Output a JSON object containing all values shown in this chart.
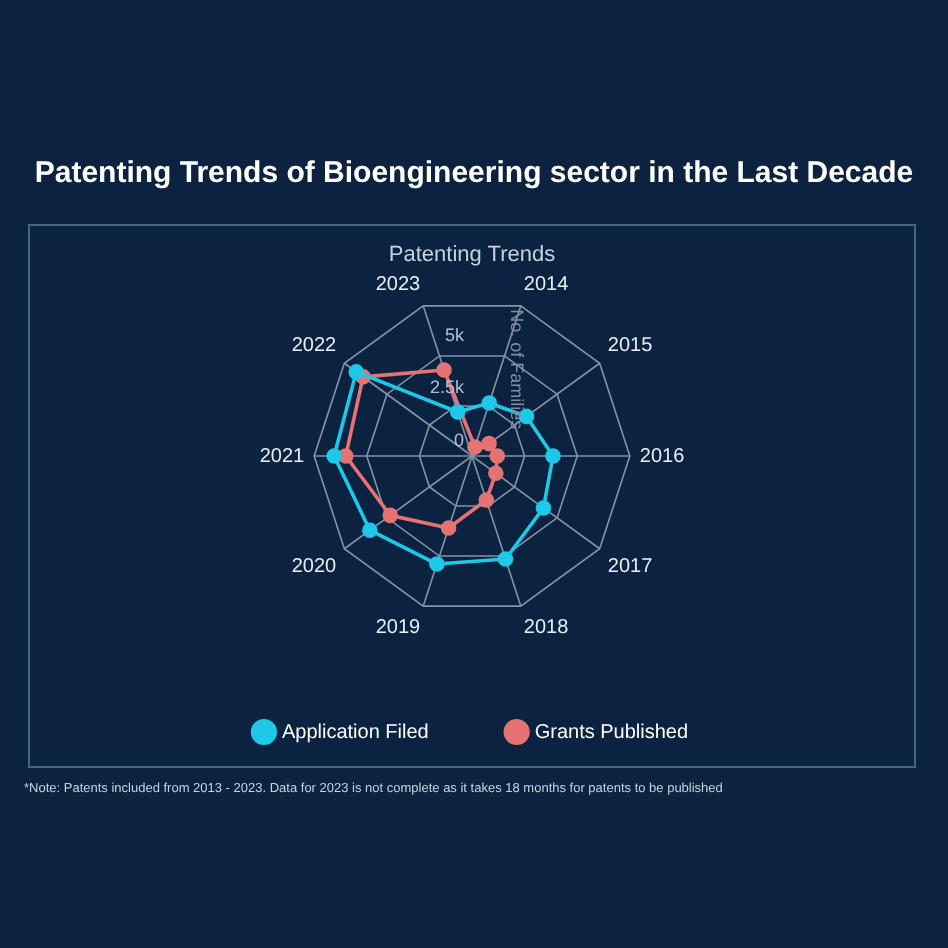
{
  "chart_data": {
    "type": "radar",
    "title": "Patenting Trends of Bioengineering sector in the Last Decade",
    "subtitle": "Patenting Trends",
    "ylabel": "No. of Families",
    "categories": [
      "2014",
      "2015",
      "2016",
      "2017",
      "2018",
      "2019",
      "2020",
      "2021",
      "2022",
      "2023"
    ],
    "series": [
      {
        "name": "Application Filed",
        "color": "#1ec8e8",
        "values": [
          2650,
          3200,
          3850,
          4200,
          5150,
          5400,
          6000,
          6550,
          6800,
          2200
        ]
      },
      {
        "name": "Grants Published",
        "color": "#e57373",
        "values": [
          450,
          1000,
          1200,
          1400,
          2200,
          3600,
          4800,
          6000,
          6400,
          4300
        ]
      }
    ],
    "ylim": [
      0,
      7500
    ],
    "yticks": [
      0,
      {
        "value": 2500,
        "label": "2.5k"
      },
      {
        "value": 5000,
        "label": "5k"
      }
    ],
    "grid": true,
    "legend": "bottom",
    "marker": "circle",
    "line_style": "solid",
    "annotations": [
      "*Note: Patents included from 2013 - 2023. Data for 2023 is not complete as it takes 18 months for patents to be published"
    ]
  }
}
